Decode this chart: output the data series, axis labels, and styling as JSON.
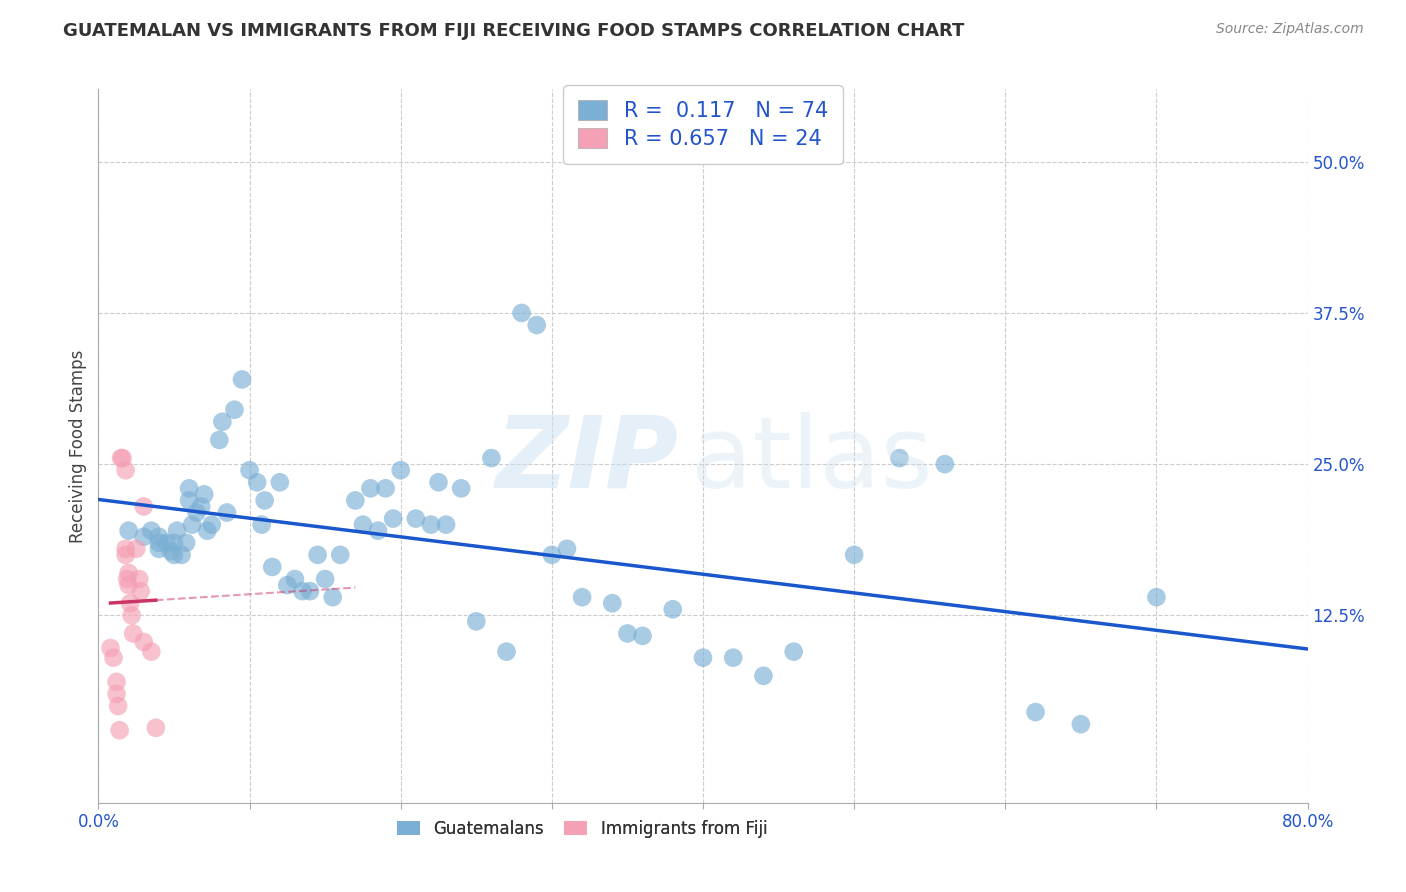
{
  "title": "GUATEMALAN VS IMMIGRANTS FROM FIJI RECEIVING FOOD STAMPS CORRELATION CHART",
  "source": "Source: ZipAtlas.com",
  "ylabel_left": "Receiving Food Stamps",
  "legend_labels": [
    "Guatemalans",
    "Immigrants from Fiji"
  ],
  "R_guatemalan": 0.117,
  "N_guatemalan": 74,
  "R_fiji": 0.657,
  "N_fiji": 24,
  "xlim": [
    0.0,
    0.8
  ],
  "ylim": [
    -0.03,
    0.56
  ],
  "yticks": [
    0.125,
    0.25,
    0.375,
    0.5
  ],
  "xticks": [
    0.0,
    0.1,
    0.2,
    0.3,
    0.4,
    0.5,
    0.6,
    0.7,
    0.8
  ],
  "guatemalan_color": "#7bafd4",
  "fiji_color": "#f4a0b5",
  "trendline_guatemalan_color": "#1a56cc",
  "trendline_fiji_color": "#cc3366",
  "background_color": "#ffffff",
  "grid_color": "#cccccc",
  "watermark_zip": "ZIP",
  "watermark_atlas": "atlas",
  "guatemalan_x": [
    0.02,
    0.03,
    0.035,
    0.04,
    0.04,
    0.04,
    0.045,
    0.048,
    0.05,
    0.05,
    0.052,
    0.055,
    0.058,
    0.06,
    0.06,
    0.062,
    0.065,
    0.068,
    0.07,
    0.072,
    0.075,
    0.08,
    0.082,
    0.085,
    0.09,
    0.095,
    0.1,
    0.105,
    0.108,
    0.11,
    0.115,
    0.12,
    0.125,
    0.13,
    0.135,
    0.14,
    0.145,
    0.15,
    0.155,
    0.16,
    0.17,
    0.175,
    0.18,
    0.185,
    0.19,
    0.195,
    0.2,
    0.21,
    0.22,
    0.225,
    0.23,
    0.24,
    0.25,
    0.26,
    0.27,
    0.28,
    0.29,
    0.3,
    0.31,
    0.32,
    0.34,
    0.35,
    0.36,
    0.38,
    0.4,
    0.42,
    0.44,
    0.46,
    0.5,
    0.53,
    0.56,
    0.62,
    0.65,
    0.7
  ],
  "guatemalan_y": [
    0.195,
    0.19,
    0.195,
    0.18,
    0.185,
    0.19,
    0.185,
    0.178,
    0.175,
    0.185,
    0.195,
    0.175,
    0.185,
    0.23,
    0.22,
    0.2,
    0.21,
    0.215,
    0.225,
    0.195,
    0.2,
    0.27,
    0.285,
    0.21,
    0.295,
    0.32,
    0.245,
    0.235,
    0.2,
    0.22,
    0.165,
    0.235,
    0.15,
    0.155,
    0.145,
    0.145,
    0.175,
    0.155,
    0.14,
    0.175,
    0.22,
    0.2,
    0.23,
    0.195,
    0.23,
    0.205,
    0.245,
    0.205,
    0.2,
    0.235,
    0.2,
    0.23,
    0.12,
    0.255,
    0.095,
    0.375,
    0.365,
    0.175,
    0.18,
    0.14,
    0.135,
    0.11,
    0.108,
    0.13,
    0.09,
    0.09,
    0.075,
    0.095,
    0.175,
    0.255,
    0.25,
    0.045,
    0.035,
    0.14
  ],
  "fiji_x": [
    0.008,
    0.01,
    0.012,
    0.012,
    0.013,
    0.014,
    0.015,
    0.016,
    0.018,
    0.018,
    0.018,
    0.019,
    0.02,
    0.02,
    0.021,
    0.022,
    0.023,
    0.025,
    0.027,
    0.028,
    0.03,
    0.03,
    0.035,
    0.038
  ],
  "fiji_y": [
    0.098,
    0.09,
    0.07,
    0.06,
    0.05,
    0.03,
    0.255,
    0.255,
    0.245,
    0.18,
    0.175,
    0.155,
    0.16,
    0.15,
    0.135,
    0.125,
    0.11,
    0.18,
    0.155,
    0.145,
    0.103,
    0.215,
    0.095,
    0.032
  ],
  "title_fontsize": 13,
  "source_fontsize": 10,
  "axis_label_fontsize": 12,
  "tick_fontsize": 12,
  "legend_fontsize": 15
}
